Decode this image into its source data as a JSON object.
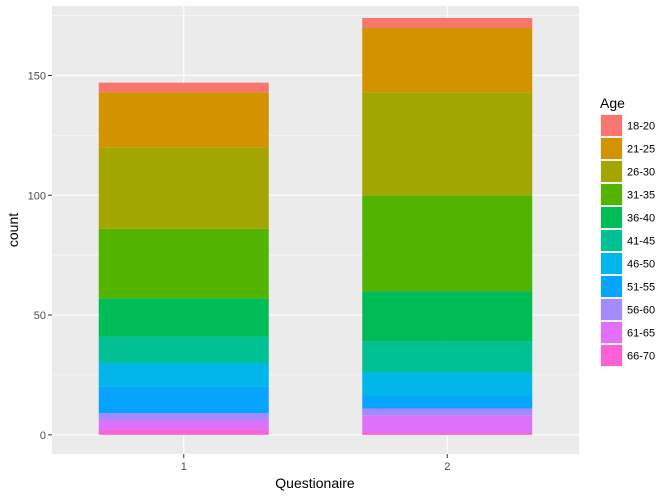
{
  "chart_data": {
    "type": "bar",
    "stacked": true,
    "title": "",
    "xlabel": "Questionaire",
    "ylabel": "count",
    "categories": [
      "1",
      "2"
    ],
    "yticks": [
      0,
      50,
      100,
      150
    ],
    "ylim": [
      -8,
      179
    ],
    "grid": true,
    "legend": {
      "title": "Age",
      "position": "right"
    },
    "series": [
      {
        "name": "18-20",
        "color": "#F8766D",
        "values": [
          4,
          4
        ]
      },
      {
        "name": "21-25",
        "color": "#D39200",
        "values": [
          23,
          27
        ]
      },
      {
        "name": "26-30",
        "color": "#A3A500",
        "values": [
          34,
          43
        ]
      },
      {
        "name": "31-35",
        "color": "#53B400",
        "values": [
          29,
          40
        ]
      },
      {
        "name": "36-40",
        "color": "#00BC56",
        "values": [
          16,
          21
        ]
      },
      {
        "name": "41-45",
        "color": "#00C094",
        "values": [
          11,
          13
        ]
      },
      {
        "name": "46-50",
        "color": "#00B6EB",
        "values": [
          10,
          10
        ]
      },
      {
        "name": "51-55",
        "color": "#06A4FF",
        "values": [
          11,
          5
        ]
      },
      {
        "name": "56-60",
        "color": "#A58AFF",
        "values": [
          3,
          3
        ]
      },
      {
        "name": "61-65",
        "color": "#DF70F8",
        "values": [
          4,
          7
        ]
      },
      {
        "name": "66-70",
        "color": "#FB61D7",
        "values": [
          2,
          1
        ]
      }
    ]
  }
}
